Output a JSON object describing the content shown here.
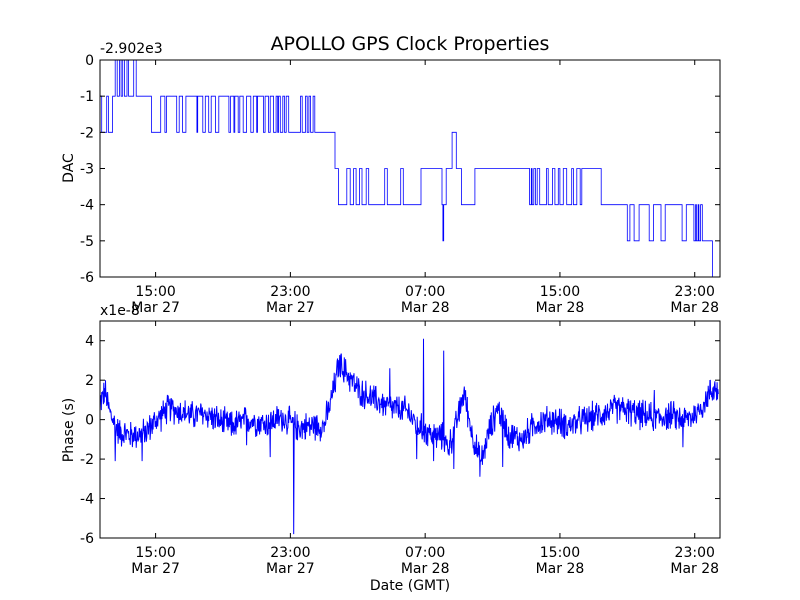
{
  "title": "APOLLO GPS Clock Properties",
  "chart_data": [
    {
      "type": "line",
      "ylabel": "DAC",
      "offset_text": "-2.902e3",
      "ylim": [
        -6,
        0
      ],
      "yticks": [
        0,
        -1,
        -2,
        -3,
        -4,
        -5,
        -6
      ],
      "ytick_labels": [
        "0",
        "-1",
        "-2",
        "-3",
        "-4",
        "-5",
        "-6"
      ],
      "xlim_hours": [
        11.7,
        48.5
      ],
      "xticks": [
        {
          "hour": 15,
          "time": "15:00",
          "date": "Mar 27"
        },
        {
          "hour": 23,
          "time": "23:00",
          "date": "Mar 27"
        },
        {
          "hour": 31,
          "time": "07:00",
          "date": "Mar 28"
        },
        {
          "hour": 39,
          "time": "15:00",
          "date": "Mar 28"
        },
        {
          "hour": 47,
          "time": "23:00",
          "date": "Mar 28"
        }
      ],
      "series_color": "#0000ff",
      "series": [
        {
          "values_step": [
            [
              11.7,
              -1
            ],
            [
              11.8,
              -2
            ],
            [
              12.1,
              -1
            ],
            [
              12.2,
              -2
            ],
            [
              12.45,
              -1
            ],
            [
              12.6,
              0
            ],
            [
              12.72,
              -1
            ],
            [
              12.85,
              0
            ],
            [
              12.95,
              -1
            ],
            [
              13.05,
              0
            ],
            [
              13.15,
              -1
            ],
            [
              13.3,
              0
            ],
            [
              13.4,
              -1
            ],
            [
              13.7,
              0
            ],
            [
              13.85,
              -1
            ],
            [
              14.75,
              -2
            ],
            [
              15.3,
              -1
            ],
            [
              15.55,
              -2
            ],
            [
              15.65,
              -1
            ],
            [
              16.25,
              -2
            ],
            [
              16.4,
              -1
            ],
            [
              16.6,
              -2
            ],
            [
              16.8,
              -1
            ],
            [
              17.45,
              -2
            ],
            [
              17.5,
              -1
            ],
            [
              17.8,
              -2
            ],
            [
              17.95,
              -1
            ],
            [
              18.15,
              -2
            ],
            [
              18.3,
              -1
            ],
            [
              18.55,
              -2
            ],
            [
              18.75,
              -1
            ],
            [
              19.35,
              -2
            ],
            [
              19.45,
              -1
            ],
            [
              19.65,
              -2
            ],
            [
              19.7,
              -1
            ],
            [
              19.9,
              -2
            ],
            [
              20.0,
              -1
            ],
            [
              20.2,
              -2
            ],
            [
              20.4,
              -1
            ],
            [
              20.65,
              -2
            ],
            [
              20.8,
              -1
            ],
            [
              21.0,
              -2
            ],
            [
              21.05,
              -1
            ],
            [
              21.4,
              -2
            ],
            [
              21.5,
              -1
            ],
            [
              21.7,
              -2
            ],
            [
              21.8,
              -1
            ],
            [
              22.0,
              -2
            ],
            [
              22.15,
              -1
            ],
            [
              22.25,
              -2
            ],
            [
              22.3,
              -1
            ],
            [
              22.4,
              -2
            ],
            [
              22.55,
              -1
            ],
            [
              22.65,
              -2
            ],
            [
              22.75,
              -1
            ],
            [
              22.9,
              -2
            ],
            [
              23.6,
              -1
            ],
            [
              23.7,
              -2
            ],
            [
              23.9,
              -1
            ],
            [
              24.0,
              -2
            ],
            [
              24.1,
              -1
            ],
            [
              24.2,
              -2
            ],
            [
              24.35,
              -1
            ],
            [
              24.45,
              -2
            ],
            [
              25.65,
              -3
            ],
            [
              25.85,
              -4
            ],
            [
              26.35,
              -3
            ],
            [
              26.55,
              -4
            ],
            [
              26.75,
              -3
            ],
            [
              26.9,
              -4
            ],
            [
              27.1,
              -3
            ],
            [
              27.25,
              -4
            ],
            [
              27.5,
              -3
            ],
            [
              27.65,
              -4
            ],
            [
              28.6,
              -3
            ],
            [
              28.75,
              -4
            ],
            [
              29.55,
              -3
            ],
            [
              29.7,
              -4
            ],
            [
              30.75,
              -3
            ],
            [
              32.0,
              -4
            ],
            [
              32.05,
              -5
            ],
            [
              32.1,
              -4
            ],
            [
              32.25,
              -3
            ],
            [
              32.6,
              -2
            ],
            [
              32.85,
              -3
            ],
            [
              33.15,
              -4
            ],
            [
              33.95,
              -3
            ],
            [
              37.2,
              -4
            ],
            [
              37.3,
              -3
            ],
            [
              37.35,
              -4
            ],
            [
              37.45,
              -3
            ],
            [
              37.55,
              -4
            ],
            [
              37.65,
              -3
            ],
            [
              37.8,
              -4
            ],
            [
              38.2,
              -3
            ],
            [
              38.3,
              -4
            ],
            [
              38.55,
              -3
            ],
            [
              38.7,
              -4
            ],
            [
              38.9,
              -3
            ],
            [
              39.0,
              -4
            ],
            [
              39.2,
              -3
            ],
            [
              39.4,
              -4
            ],
            [
              39.7,
              -3
            ],
            [
              39.8,
              -4
            ],
            [
              40.0,
              -3
            ],
            [
              40.2,
              -4
            ],
            [
              40.3,
              -3
            ],
            [
              41.45,
              -4
            ],
            [
              43.0,
              -5
            ],
            [
              43.15,
              -4
            ],
            [
              43.4,
              -5
            ],
            [
              43.7,
              -4
            ],
            [
              44.3,
              -5
            ],
            [
              44.55,
              -4
            ],
            [
              45.0,
              -5
            ],
            [
              45.25,
              -4
            ],
            [
              46.25,
              -5
            ],
            [
              46.5,
              -4
            ],
            [
              46.95,
              -5
            ],
            [
              47.05,
              -4
            ],
            [
              47.1,
              -5
            ],
            [
              47.2,
              -4
            ],
            [
              47.25,
              -5
            ],
            [
              47.35,
              -4
            ],
            [
              47.45,
              -5
            ],
            [
              48.05,
              -6
            ],
            [
              48.15,
              -6
            ]
          ]
        }
      ]
    },
    {
      "type": "line",
      "ylabel": "Phase (s)",
      "xlabel": "Date (GMT)",
      "offset_text": "x1e-8",
      "ylim": [
        -6,
        5
      ],
      "yticks": [
        4,
        2,
        0,
        -2,
        -4,
        -6
      ],
      "ytick_labels": [
        "4",
        "2",
        "0",
        "-2",
        "-4",
        "-6"
      ],
      "xlim_hours": [
        11.7,
        48.5
      ],
      "xticks": [
        {
          "hour": 15,
          "time": "15:00",
          "date": "Mar 27"
        },
        {
          "hour": 23,
          "time": "23:00",
          "date": "Mar 27"
        },
        {
          "hour": 31,
          "time": "07:00",
          "date": "Mar 28"
        },
        {
          "hour": 39,
          "time": "15:00",
          "date": "Mar 28"
        },
        {
          "hour": 47,
          "time": "23:00",
          "date": "Mar 28"
        }
      ],
      "series_color": "#0000ff",
      "series": [
        {
          "trend": [
            [
              11.7,
              0.9
            ],
            [
              12.0,
              1.4
            ],
            [
              12.3,
              0.3
            ],
            [
              12.8,
              -0.6
            ],
            [
              13.5,
              -0.8
            ],
            [
              14.3,
              -0.7
            ],
            [
              15.2,
              0.1
            ],
            [
              15.8,
              0.6
            ],
            [
              16.5,
              0.4
            ],
            [
              17.2,
              0.2
            ],
            [
              18.0,
              0.3
            ],
            [
              18.8,
              -0.1
            ],
            [
              19.5,
              -0.3
            ],
            [
              20.5,
              0.0
            ],
            [
              21.5,
              -0.2
            ],
            [
              22.5,
              0.1
            ],
            [
              23.5,
              -0.4
            ],
            [
              24.3,
              -0.3
            ],
            [
              25.0,
              -0.3
            ],
            [
              25.4,
              0.9
            ],
            [
              25.9,
              2.8
            ],
            [
              26.4,
              2.3
            ],
            [
              27.0,
              1.5
            ],
            [
              28.0,
              1.0
            ],
            [
              29.0,
              0.6
            ],
            [
              30.0,
              0.4
            ],
            [
              30.5,
              -0.3
            ],
            [
              31.0,
              -0.6
            ],
            [
              31.5,
              -0.8
            ],
            [
              32.0,
              -0.9
            ],
            [
              32.4,
              -1.4
            ],
            [
              32.8,
              -0.4
            ],
            [
              33.3,
              1.4
            ],
            [
              33.8,
              -0.8
            ],
            [
              34.3,
              -2.2
            ],
            [
              34.8,
              -0.6
            ],
            [
              35.3,
              0.6
            ],
            [
              36.0,
              -0.8
            ],
            [
              36.8,
              -1.0
            ],
            [
              37.5,
              -0.2
            ],
            [
              38.5,
              0.0
            ],
            [
              39.5,
              -0.3
            ],
            [
              40.5,
              0.0
            ],
            [
              41.5,
              0.3
            ],
            [
              42.5,
              0.6
            ],
            [
              43.5,
              0.3
            ],
            [
              44.5,
              0.1
            ],
            [
              45.5,
              0.2
            ],
            [
              46.5,
              0.0
            ],
            [
              47.2,
              0.4
            ],
            [
              48.1,
              1.6
            ],
            [
              48.5,
              1.5
            ]
          ],
          "spikes": [
            [
              23.2,
              -5.8
            ],
            [
              26.0,
              3.3
            ],
            [
              28.9,
              2.6
            ],
            [
              30.9,
              4.1
            ],
            [
              32.1,
              3.5
            ],
            [
              30.5,
              -2.0
            ],
            [
              31.5,
              -2.1
            ],
            [
              32.7,
              -2.5
            ],
            [
              34.25,
              -2.9
            ],
            [
              21.8,
              -1.9
            ],
            [
              12.6,
              -2.1
            ],
            [
              14.2,
              -2.1
            ],
            [
              25.8,
              3.1
            ],
            [
              35.6,
              -2.4
            ],
            [
              46.3,
              -1.4
            ],
            [
              20.4,
              -1.3
            ],
            [
              44.6,
              1.5
            ]
          ],
          "noise_amplitude": 0.6
        }
      ]
    }
  ]
}
